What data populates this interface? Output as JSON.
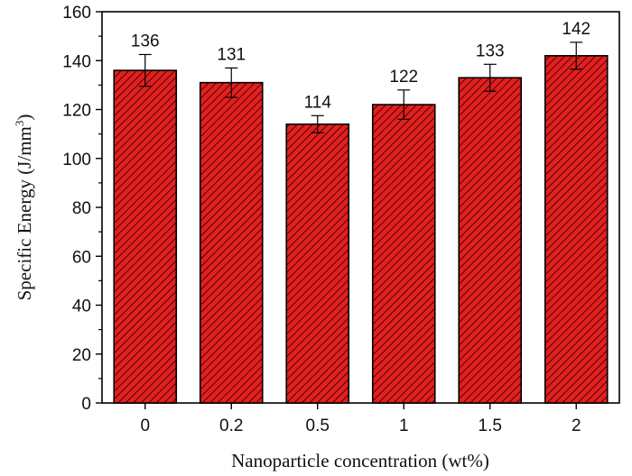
{
  "chart_data": {
    "type": "bar",
    "categories": [
      "0",
      "0.2",
      "0.5",
      "1",
      "1.5",
      "2"
    ],
    "values": [
      136,
      131,
      114,
      122,
      133,
      142
    ],
    "data_labels": [
      "136",
      "131",
      "114",
      "122",
      "133",
      "142"
    ],
    "errors": [
      6.5,
      6,
      3.5,
      6,
      5.5,
      5.5
    ],
    "xlabel": "Nanoparticle concentration  (wt%)",
    "ylabel": {
      "main": "Specific Energy (J/mm",
      "sup": "3",
      "close": ")"
    },
    "ylim": [
      0,
      160
    ],
    "yticks": [
      "0",
      "20",
      "40",
      "60",
      "80",
      "100",
      "120",
      "140",
      "160"
    ],
    "grid": false,
    "legend": "none",
    "bar_fill": "#e41f1f",
    "bar_hatch": "diagonal",
    "bar_edge": "#000000"
  }
}
